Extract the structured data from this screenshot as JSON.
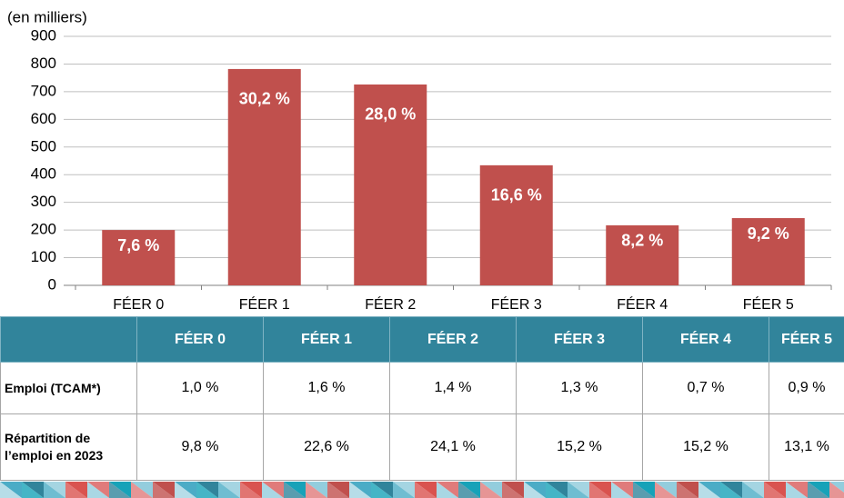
{
  "chart_data": {
    "type": "bar",
    "y_label": "(en milliers)",
    "categories": [
      "FÉER 0",
      "FÉER 1",
      "FÉER 2",
      "FÉER 3",
      "FÉER 4",
      "FÉER 5"
    ],
    "values": [
      200,
      782,
      726,
      434,
      217,
      243
    ],
    "shares": [
      7.6,
      30.2,
      28.0,
      16.6,
      8.2,
      9.2
    ],
    "share_labels": [
      "7,6 %",
      "30,2 %",
      "28,0 %",
      "16,6 %",
      "8,2 %",
      "9,2 %"
    ],
    "color": "#c0504d",
    "ylim": [
      0,
      900
    ],
    "yticks": [
      0,
      100,
      200,
      300,
      400,
      500,
      600,
      700,
      800,
      900
    ],
    "grid": true
  },
  "table": {
    "header": [
      "FÉER 0",
      "FÉER 1",
      "FÉER 2",
      "FÉER 3",
      "FÉER 4",
      "FÉER 5"
    ],
    "rows": [
      {
        "label": "Emploi (TCAM*)",
        "cells": [
          "1,0 %",
          "1,6 %",
          "1,4 %",
          "1,3 %",
          "0,7 %",
          "0,9 %"
        ]
      },
      {
        "label": "Répartition de l’emploi en 2023",
        "cells": [
          "9,8 %",
          "22,6 %",
          "24,1 %",
          "15,2 %",
          "15,2 %",
          "13,1 %"
        ]
      }
    ]
  }
}
